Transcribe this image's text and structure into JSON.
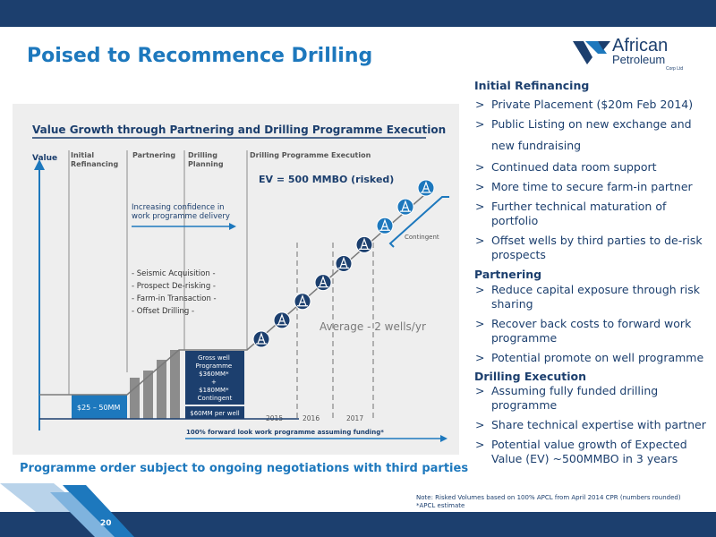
{
  "slide": {
    "title": "Poised to Recommence Drilling",
    "subtitle": "Programme order subject to ongoing negotiations with third parties",
    "page_number": "20",
    "note_line1": "Note: Risked Volumes based on 100% APCL from April 2014 CPR (numbers rounded)",
    "note_line2": "*APCL estimate"
  },
  "logo": {
    "line1": "African",
    "line2": "Petroleum",
    "line3": "Corp Ltd"
  },
  "colors": {
    "brand_dark": "#1c3f6e",
    "brand_blue": "#1d78bd",
    "panel_bg": "#eeeeee",
    "bar_gray": "#8c8c8c"
  },
  "chart": {
    "title": "Value Growth through Partnering and Drilling Programme Execution",
    "y_label": "Value",
    "phases": [
      "Initial Refinancing",
      "Partnering",
      "Drilling Planning",
      "Drilling Programme Execution"
    ],
    "ev_label": "EV  = 500 MMBO (risked)",
    "confidence_label": "Increasing confidence in work programme delivery",
    "activities": [
      "- Seismic Acquisition -",
      "- Prospect De-risking -",
      "- Farm-in Transaction -",
      "- Offset Drilling -"
    ],
    "initial_box": "$25 – 50MM",
    "gross_box": [
      "Gross well",
      "Programme",
      "$360MM*",
      "+",
      "$180MM*",
      "Contingent"
    ],
    "per_well_box": "$60MM per well",
    "years": [
      "2015",
      "2016",
      "2017"
    ],
    "average_label": "Average - 2 wells/yr",
    "contingent_label": "Contingent",
    "funding_label": "100% forward look work programme assuming funding*",
    "rig_icon": "drilling-rig-icon"
  },
  "chart_data": {
    "type": "line",
    "title": "Value Growth through Partnering and Drilling Programme Execution",
    "ylabel": "Value",
    "wells": [
      {
        "year": "2015",
        "well": 1,
        "contingent": false
      },
      {
        "year": "2015",
        "well": 2,
        "contingent": false
      },
      {
        "year": "2016",
        "well": 3,
        "contingent": false
      },
      {
        "year": "2016",
        "well": 4,
        "contingent": false
      },
      {
        "year": "2017",
        "well": 5,
        "contingent": false
      },
      {
        "year": "2017",
        "well": 6,
        "contingent": false
      },
      {
        "year": "2017",
        "well": 7,
        "contingent": true
      },
      {
        "year": "2017",
        "well": 8,
        "contingent": true
      },
      {
        "year": "2017",
        "well": 9,
        "contingent": true
      }
    ]
  },
  "right": {
    "sections": [
      {
        "heading": "Initial Refinancing",
        "items": [
          "Private Placement ($20m Feb 2014)",
          "Public Listing on new exchange and",
          "new fundraising",
          "Continued data room support",
          "More time to secure farm-in partner",
          "Further technical maturation of portfolio",
          "Offset wells by third parties to de-risk prospects"
        ]
      },
      {
        "heading": "Partnering",
        "items": [
          "Reduce capital exposure through risk sharing",
          "Recover back costs to forward work programme",
          "Potential promote on well programme"
        ]
      },
      {
        "heading": "Drilling Execution",
        "items": [
          "Assuming fully funded drilling programme",
          "Share technical expertise with partner",
          "Potential value growth of Expected Value (EV) ~500MMBO in 3 years"
        ]
      }
    ]
  }
}
